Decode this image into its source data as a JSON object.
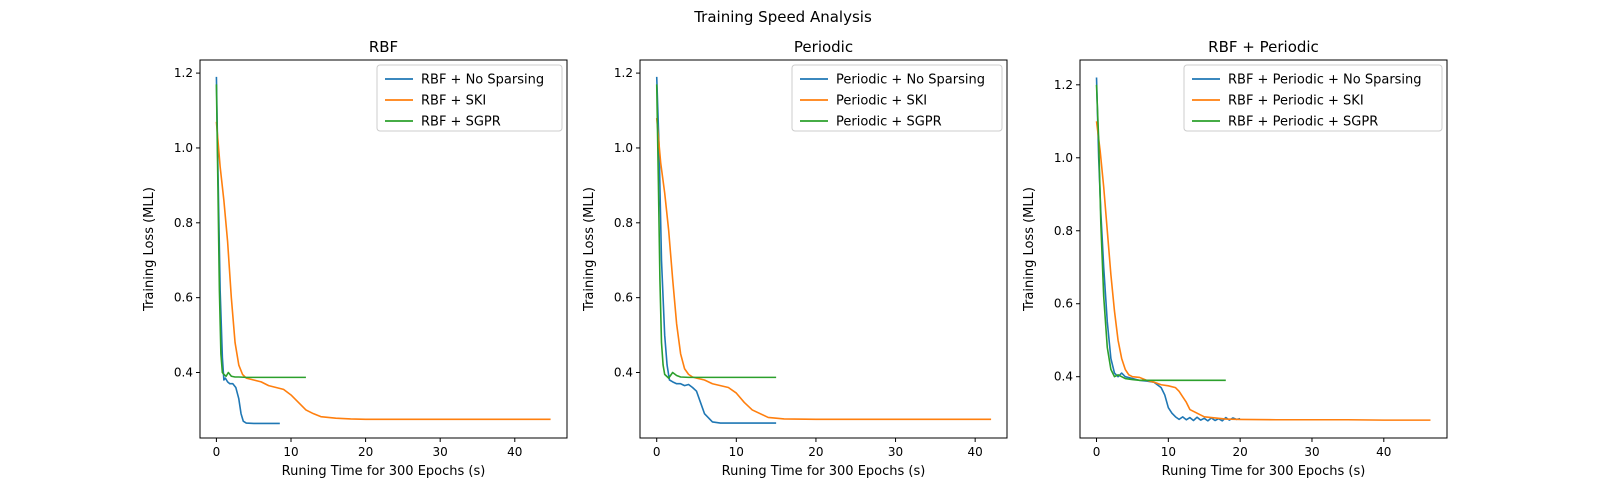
{
  "figure": {
    "suptitle": "Training Speed Analysis"
  },
  "colors": {
    "blue": "#1f77b4",
    "orange": "#ff7f0e",
    "green": "#2ca02c"
  },
  "chart_data": [
    {
      "type": "line",
      "title": "RBF",
      "xlabel": "Runing Time for 300 Epochs (s)",
      "ylabel": "Training Loss (MLL)",
      "xlim": [
        -2.2,
        47.0
      ],
      "ylim": [
        0.225,
        1.235
      ],
      "xticks": [
        0,
        10,
        20,
        30,
        40
      ],
      "yticks": [
        0.4,
        0.6,
        0.8,
        1.0,
        1.2
      ],
      "ytick_labels": [
        "0.4",
        "0.6",
        "0.8",
        "1.0",
        "1.2"
      ],
      "grid": false,
      "legend": "top-right",
      "series": [
        {
          "name": "RBF + No Sparsing",
          "color": "#1f77b4",
          "x": [
            0,
            0.2,
            0.5,
            0.8,
            1.0,
            1.2,
            1.5,
            1.8,
            2.2,
            2.6,
            3.0,
            3.3,
            3.6,
            4.0,
            5.0,
            6.0,
            7.0,
            8.5
          ],
          "y": [
            1.19,
            0.95,
            0.62,
            0.44,
            0.38,
            0.385,
            0.375,
            0.37,
            0.37,
            0.36,
            0.33,
            0.29,
            0.27,
            0.265,
            0.264,
            0.264,
            0.264,
            0.264
          ]
        },
        {
          "name": "RBF + SKI",
          "color": "#ff7f0e",
          "x": [
            0,
            0.5,
            1.0,
            1.5,
            2.0,
            2.5,
            3.0,
            3.5,
            4.0,
            5.0,
            6.0,
            7.0,
            8.0,
            9.0,
            10.0,
            11.0,
            12.0,
            13.0,
            14.0,
            16.0,
            18.0,
            20.0,
            25.0,
            30.0,
            35.0,
            40.0,
            44.8
          ],
          "y": [
            1.07,
            0.95,
            0.86,
            0.75,
            0.6,
            0.48,
            0.42,
            0.395,
            0.385,
            0.38,
            0.375,
            0.365,
            0.36,
            0.355,
            0.34,
            0.32,
            0.3,
            0.29,
            0.282,
            0.278,
            0.276,
            0.275,
            0.275,
            0.275,
            0.275,
            0.275,
            0.275
          ]
        },
        {
          "name": "RBF + SGPR",
          "color": "#2ca02c",
          "x": [
            0,
            0.2,
            0.4,
            0.6,
            0.8,
            1.0,
            1.3,
            1.6,
            2.0,
            2.5,
            3.0,
            4.0,
            6.0,
            8.0,
            10.0,
            12.0
          ],
          "y": [
            1.17,
            0.9,
            0.62,
            0.45,
            0.4,
            0.395,
            0.39,
            0.4,
            0.39,
            0.388,
            0.388,
            0.387,
            0.387,
            0.387,
            0.387,
            0.387
          ]
        }
      ]
    },
    {
      "type": "line",
      "title": "Periodic",
      "xlabel": "Runing Time for 300 Epochs (s)",
      "ylabel": "Training Loss (MLL)",
      "xlim": [
        -2.1,
        44.0
      ],
      "ylim": [
        0.225,
        1.235
      ],
      "xticks": [
        0,
        10,
        20,
        30,
        40
      ],
      "yticks": [
        0.4,
        0.6,
        0.8,
        1.0,
        1.2
      ],
      "ytick_labels": [
        "0.4",
        "0.6",
        "0.8",
        "1.0",
        "1.2"
      ],
      "grid": false,
      "legend": "top-right",
      "series": [
        {
          "name": "Periodic + No Sparsing",
          "color": "#1f77b4",
          "x": [
            0,
            0.3,
            0.6,
            1.0,
            1.3,
            1.6,
            2.0,
            2.5,
            3.0,
            3.5,
            4.0,
            4.5,
            5.0,
            5.5,
            6.0,
            7.0,
            8.0,
            10.0,
            12.0,
            15.0
          ],
          "y": [
            1.19,
            1.0,
            0.7,
            0.5,
            0.42,
            0.38,
            0.375,
            0.37,
            0.37,
            0.365,
            0.368,
            0.36,
            0.35,
            0.32,
            0.29,
            0.268,
            0.265,
            0.265,
            0.265,
            0.265
          ]
        },
        {
          "name": "Periodic + SKI",
          "color": "#ff7f0e",
          "x": [
            0,
            0.5,
            1.0,
            1.5,
            2.0,
            2.5,
            3.0,
            3.5,
            4.0,
            4.5,
            5.0,
            6.0,
            7.0,
            8.0,
            9.0,
            10.0,
            11.0,
            12.0,
            14.0,
            16.0,
            20.0,
            30.0,
            42.0
          ],
          "y": [
            1.08,
            0.96,
            0.88,
            0.78,
            0.65,
            0.53,
            0.45,
            0.41,
            0.395,
            0.388,
            0.385,
            0.38,
            0.37,
            0.365,
            0.36,
            0.345,
            0.32,
            0.3,
            0.28,
            0.276,
            0.275,
            0.275,
            0.275
          ]
        },
        {
          "name": "Periodic + SGPR",
          "color": "#2ca02c",
          "x": [
            0,
            0.2,
            0.4,
            0.6,
            0.8,
            1.0,
            1.5,
            2.0,
            2.5,
            3.0,
            4.0,
            6.0,
            8.0,
            10.0,
            12.0,
            15.0
          ],
          "y": [
            1.17,
            0.92,
            0.65,
            0.48,
            0.42,
            0.395,
            0.385,
            0.4,
            0.392,
            0.388,
            0.387,
            0.387,
            0.387,
            0.387,
            0.387,
            0.387
          ]
        }
      ]
    },
    {
      "type": "line",
      "title": "RBF + Periodic",
      "xlabel": "Runing Time for 300 Epochs (s)",
      "ylabel": "Training Loss (MLL)",
      "xlim": [
        -2.3,
        48.8
      ],
      "ylim": [
        0.232,
        1.268
      ],
      "xticks": [
        0,
        10,
        20,
        30,
        40
      ],
      "yticks": [
        0.4,
        0.6,
        0.8,
        1.0,
        1.2
      ],
      "ytick_labels": [
        "0.4",
        "0.6",
        "0.8",
        "1.0",
        "1.2"
      ],
      "grid": false,
      "legend": "top-right",
      "series": [
        {
          "name": "RBF + Periodic + No Sparsing",
          "color": "#1f77b4",
          "x": [
            0,
            0.3,
            0.6,
            1.0,
            1.5,
            2.0,
            2.5,
            3.0,
            3.5,
            4.0,
            5.0,
            6.0,
            7.0,
            8.0,
            9.0,
            9.5,
            10.0,
            10.5,
            11.0,
            11.5,
            12.0,
            12.5,
            13.0,
            13.5,
            14.0,
            14.5,
            15.0,
            15.5,
            16.0,
            16.5,
            17.0,
            17.5,
            18.0,
            18.5,
            19.0,
            19.5,
            20.0
          ],
          "y": [
            1.22,
            1.0,
            0.85,
            0.7,
            0.55,
            0.45,
            0.41,
            0.4,
            0.41,
            0.4,
            0.395,
            0.39,
            0.388,
            0.385,
            0.37,
            0.35,
            0.315,
            0.3,
            0.29,
            0.283,
            0.29,
            0.282,
            0.288,
            0.28,
            0.289,
            0.281,
            0.286,
            0.279,
            0.287,
            0.28,
            0.285,
            0.279,
            0.288,
            0.281,
            0.287,
            0.283,
            0.285
          ]
        },
        {
          "name": "RBF + Periodic + SKI",
          "color": "#ff7f0e",
          "x": [
            0,
            0.5,
            1.0,
            1.5,
            2.0,
            2.5,
            3.0,
            3.5,
            4.0,
            4.5,
            5.0,
            6.0,
            7.0,
            8.0,
            9.0,
            10.0,
            11.0,
            11.5,
            12.0,
            12.5,
            13.0,
            14.0,
            15.0,
            16.0,
            18.0,
            20.0,
            25.0,
            30.0,
            35.0,
            40.0,
            46.5
          ],
          "y": [
            1.1,
            1.02,
            0.92,
            0.8,
            0.68,
            0.58,
            0.5,
            0.45,
            0.42,
            0.405,
            0.4,
            0.398,
            0.39,
            0.385,
            0.378,
            0.375,
            0.37,
            0.36,
            0.345,
            0.33,
            0.31,
            0.3,
            0.29,
            0.288,
            0.284,
            0.283,
            0.282,
            0.282,
            0.282,
            0.281,
            0.281
          ]
        },
        {
          "name": "RBF + Periodic + SGPR",
          "color": "#2ca02c",
          "x": [
            0,
            0.3,
            0.6,
            1.0,
            1.5,
            2.0,
            2.5,
            3.0,
            3.5,
            4.0,
            5.0,
            6.0,
            7.0,
            8.0,
            10.0,
            12.0,
            14.0,
            16.0,
            18.0
          ],
          "y": [
            1.2,
            1.05,
            0.82,
            0.62,
            0.48,
            0.42,
            0.4,
            0.405,
            0.4,
            0.395,
            0.392,
            0.39,
            0.39,
            0.39,
            0.39,
            0.39,
            0.39,
            0.39,
            0.39
          ]
        }
      ]
    }
  ]
}
